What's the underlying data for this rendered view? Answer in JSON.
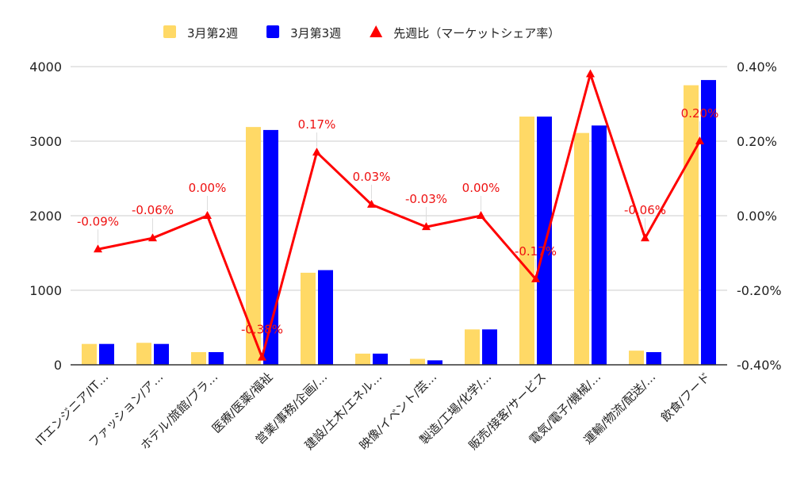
{
  "chart_data": {
    "type": "bar",
    "categories": [
      "ITエンジニア/IT…",
      "ファッション/ア…",
      "ホテル/旅館/ブラ…",
      "医療/医薬/福祉",
      "営業/事務/企画/…",
      "建設/土木/エネル…",
      "映像/イベント/芸…",
      "製造/工場/化学/…",
      "販売/接客/サービス",
      "電気/電子/機械/…",
      "運輸/物流/配送/…",
      "飲食/フード"
    ],
    "series": [
      {
        "name": "3月第2週",
        "type": "bar",
        "axis": "left",
        "color": "#ffd966",
        "values": [
          280,
          295,
          170,
          3190,
          1235,
          150,
          80,
          475,
          3330,
          3110,
          190,
          3750
        ]
      },
      {
        "name": "3月第3週",
        "type": "bar",
        "axis": "left",
        "color": "#0000ff",
        "values": [
          280,
          280,
          170,
          3150,
          1270,
          150,
          60,
          475,
          3330,
          3210,
          170,
          3820
        ]
      },
      {
        "name": "先週比（マーケットシェア率）",
        "type": "line",
        "axis": "right",
        "color": "#ff0000",
        "values": [
          -0.09,
          -0.06,
          0.0,
          -0.38,
          0.17,
          0.03,
          -0.03,
          0.0,
          -0.17,
          0.38,
          -0.06,
          0.2
        ],
        "labels": [
          "-0.09%",
          "-0.06%",
          "0.00%",
          "-0.38%",
          "0.17%",
          "0.03%",
          "-0.03%",
          "0.00%",
          "-0.17%",
          "",
          "-0.06%",
          "0.20%"
        ]
      }
    ],
    "y_left": {
      "lim": [
        0,
        4000
      ],
      "ticks": [
        "0",
        "1000",
        "2000",
        "3000",
        "4000"
      ]
    },
    "y_right": {
      "lim": [
        -0.4,
        0.4
      ],
      "ticks": [
        "-0.40%",
        "-0.20%",
        "0.00%",
        "0.20%",
        "0.40%"
      ]
    },
    "grid": true,
    "legend_position": "top"
  }
}
